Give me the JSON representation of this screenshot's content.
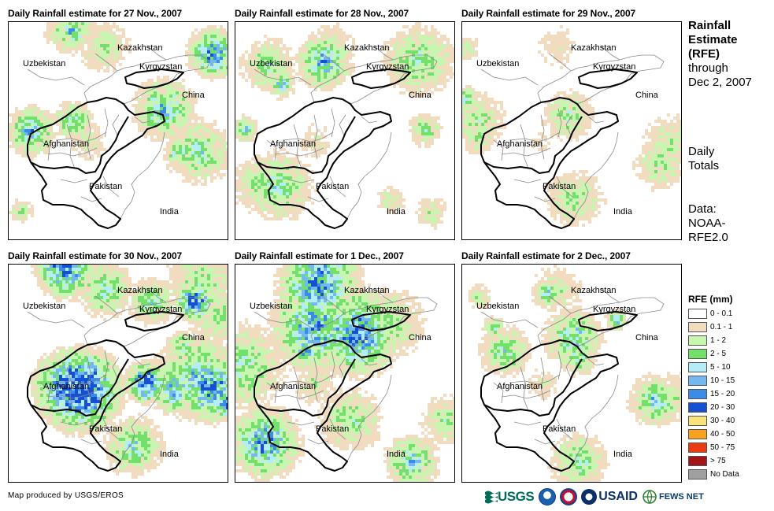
{
  "panels": [
    {
      "title": "Daily Rainfall estimate for 27 Nov., 2007",
      "intensity": 0.55,
      "seed": 27
    },
    {
      "title": "Daily Rainfall estimate for 28 Nov., 2007",
      "intensity": 0.45,
      "seed": 28
    },
    {
      "title": "Daily Rainfall estimate for 29 Nov., 2007",
      "intensity": 0.25,
      "seed": 29
    },
    {
      "title": "Daily Rainfall estimate for 30 Nov., 2007",
      "intensity": 0.95,
      "seed": 30
    },
    {
      "title": "Daily Rainfall estimate for 1 Dec., 2007",
      "intensity": 0.75,
      "seed": 1
    },
    {
      "title": "Daily Rainfall estimate for 2 Dec., 2007",
      "intensity": 0.45,
      "seed": 2
    }
  ],
  "country_labels": {
    "kazakhstan": "Kazakhstan",
    "uzbekistan": "Uzbekistan",
    "kyrgyzstan": "Kyrgyzstan",
    "china": "China",
    "afghanistan": "Afghanistan",
    "pakistan": "Pakistan",
    "india": "India"
  },
  "side": {
    "title_bold": [
      "Rainfall",
      "Estimate",
      "(RFE)"
    ],
    "title_rest": [
      "through",
      "Dec 2, 2007"
    ],
    "totals": [
      "Daily",
      "Totals"
    ],
    "data_source": [
      "Data:",
      "NOAA-",
      "RFE2.0"
    ]
  },
  "legend": {
    "title": "RFE (mm)",
    "items": [
      {
        "label": "0 - 0.1",
        "color": "#ffffff"
      },
      {
        "label": "0.1 - 1",
        "color": "#f1dcc0"
      },
      {
        "label": "1 - 2",
        "color": "#c8f5b0"
      },
      {
        "label": "2 - 5",
        "color": "#72e06a"
      },
      {
        "label": "5 - 10",
        "color": "#b4ecf8"
      },
      {
        "label": "10 - 15",
        "color": "#74b8f2"
      },
      {
        "label": "15 - 20",
        "color": "#3a8ce8"
      },
      {
        "label": "20 - 30",
        "color": "#1650d2"
      },
      {
        "label": "30 - 40",
        "color": "#f8e27a"
      },
      {
        "label": "40 - 50",
        "color": "#f8a21e"
      },
      {
        "label": "50 - 75",
        "color": "#ec3a12"
      },
      {
        "label": "> 75",
        "color": "#a4151a"
      },
      {
        "label": "No Data",
        "color": "#a0a0a0"
      }
    ]
  },
  "credit": "Map produced by USGS/EROS",
  "logos": {
    "usgs": "USGS",
    "usaid": "USAID",
    "fews": "FEWS NET"
  }
}
